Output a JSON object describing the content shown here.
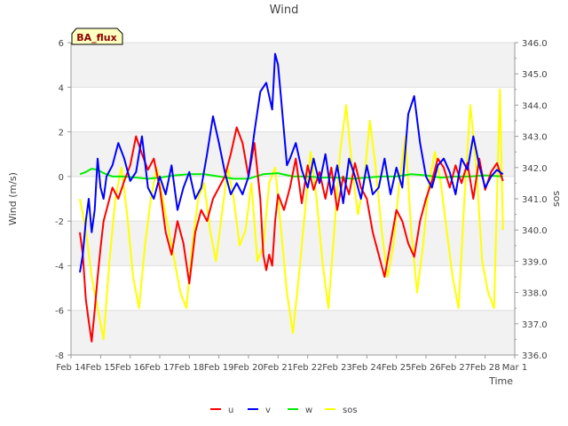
{
  "chart_data": {
    "type": "line",
    "title": "Wind",
    "xlabel": "Time",
    "ylabel": "Wind (m/s)",
    "y2label": "sos",
    "site_badge": "BA_flux",
    "x_ticks": [
      "Feb 14",
      "Feb 15",
      "Feb 16",
      "Feb 17",
      "Feb 18",
      "Feb 19",
      "Feb 20",
      "Feb 21",
      "Feb 22",
      "Feb 23",
      "Feb 24",
      "Feb 25",
      "Feb 26",
      "Feb 27",
      "Feb 28",
      "Mar 1"
    ],
    "xlim_days": [
      0,
      15
    ],
    "ylim": [
      -8,
      6
    ],
    "y_ticks": [
      "-8",
      "-6",
      "-4",
      "-2",
      "0",
      "2",
      "4",
      "6"
    ],
    "y2lim": [
      336.0,
      346.0
    ],
    "y2_ticks": [
      "336.0",
      "337.0",
      "338.0",
      "339.0",
      "340.0",
      "341.0",
      "342.0",
      "343.0",
      "344.0",
      "345.0",
      "346.0"
    ],
    "legend": [
      "u",
      "v",
      "w",
      "sos"
    ],
    "colors": {
      "u": "#ff0000",
      "v": "#0000ff",
      "w": "#00ee00",
      "sos": "#ffff00"
    },
    "series": [
      {
        "name": "u",
        "axis": "left",
        "x": [
          0.3,
          0.4,
          0.5,
          0.6,
          0.7,
          0.8,
          0.9,
          1.0,
          1.1,
          1.2,
          1.4,
          1.6,
          1.8,
          2.0,
          2.2,
          2.4,
          2.6,
          2.8,
          3.0,
          3.2,
          3.4,
          3.6,
          3.8,
          4.0,
          4.2,
          4.4,
          4.6,
          4.8,
          5.0,
          5.2,
          5.4,
          5.6,
          5.8,
          6.0,
          6.2,
          6.4,
          6.5,
          6.6,
          6.7,
          6.8,
          6.9,
          7.0,
          7.2,
          7.4,
          7.6,
          7.8,
          8.0,
          8.2,
          8.4,
          8.6,
          8.8,
          9.0,
          9.2,
          9.4,
          9.6,
          9.8,
          10.0,
          10.2,
          10.4,
          10.6,
          10.8,
          11.0,
          11.2,
          11.4,
          11.6,
          11.8,
          12.0,
          12.2,
          12.4,
          12.6,
          12.8,
          13.0,
          13.2,
          13.4,
          13.6,
          13.8,
          14.0,
          14.2,
          14.4,
          14.6
        ],
        "values": [
          -2.5,
          -3.5,
          -5.5,
          -6.5,
          -7.4,
          -6.0,
          -4.5,
          -3.2,
          -2.0,
          -1.5,
          -0.5,
          -1.0,
          -0.2,
          0.5,
          1.8,
          1.0,
          0.3,
          0.8,
          -0.5,
          -2.5,
          -3.5,
          -2.0,
          -3.0,
          -4.8,
          -2.5,
          -1.5,
          -2.0,
          -1.0,
          -0.5,
          0.0,
          1.0,
          2.2,
          1.5,
          0.0,
          1.5,
          -1.0,
          -3.5,
          -4.2,
          -3.5,
          -4.0,
          -2.0,
          -0.8,
          -1.5,
          -0.5,
          0.8,
          -1.2,
          0.5,
          -0.6,
          0.2,
          -1.0,
          0.4,
          -1.5,
          0.0,
          -0.8,
          0.6,
          -0.5,
          -1.0,
          -2.5,
          -3.5,
          -4.5,
          -3.0,
          -1.5,
          -2.0,
          -3.0,
          -3.6,
          -2.0,
          -1.0,
          -0.2,
          0.8,
          0.4,
          -0.5,
          0.5,
          -0.3,
          0.6,
          -1.0,
          0.8,
          -0.6,
          0.2,
          0.6,
          -0.2
        ]
      },
      {
        "name": "v",
        "axis": "left",
        "x": [
          0.3,
          0.4,
          0.5,
          0.6,
          0.7,
          0.8,
          0.9,
          1.0,
          1.1,
          1.2,
          1.4,
          1.6,
          1.8,
          2.0,
          2.2,
          2.4,
          2.6,
          2.8,
          3.0,
          3.2,
          3.4,
          3.6,
          3.8,
          4.0,
          4.2,
          4.4,
          4.6,
          4.8,
          5.0,
          5.2,
          5.4,
          5.6,
          5.8,
          6.0,
          6.2,
          6.4,
          6.6,
          6.8,
          6.9,
          7.0,
          7.1,
          7.2,
          7.3,
          7.4,
          7.6,
          7.8,
          8.0,
          8.2,
          8.4,
          8.6,
          8.8,
          9.0,
          9.2,
          9.4,
          9.6,
          9.8,
          10.0,
          10.2,
          10.4,
          10.6,
          10.8,
          11.0,
          11.2,
          11.4,
          11.6,
          11.8,
          12.0,
          12.2,
          12.4,
          12.6,
          12.8,
          13.0,
          13.2,
          13.4,
          13.6,
          13.8,
          14.0,
          14.2,
          14.4,
          14.6
        ],
        "values": [
          -4.3,
          -3.5,
          -2.0,
          -1.0,
          -2.5,
          -1.5,
          0.8,
          -0.5,
          -1.0,
          0.0,
          0.5,
          1.5,
          0.8,
          -0.2,
          0.2,
          1.8,
          -0.5,
          -1.0,
          0.0,
          -0.8,
          0.5,
          -1.5,
          -0.5,
          0.2,
          -1.0,
          -0.5,
          1.0,
          2.7,
          1.5,
          0.2,
          -0.8,
          -0.3,
          -0.8,
          0.0,
          2.0,
          3.8,
          4.2,
          3.0,
          5.5,
          5.0,
          3.5,
          2.0,
          0.5,
          0.8,
          1.5,
          0.3,
          -0.5,
          0.8,
          -0.3,
          1.0,
          -0.8,
          0.5,
          -1.2,
          0.8,
          0.0,
          -1.0,
          0.5,
          -0.8,
          -0.5,
          0.8,
          -0.8,
          0.4,
          -0.5,
          2.8,
          3.6,
          1.5,
          0.0,
          -0.5,
          0.5,
          0.8,
          0.2,
          -0.8,
          0.8,
          0.3,
          1.8,
          0.5,
          -0.5,
          0.0,
          0.3,
          0.1
        ]
      },
      {
        "name": "w",
        "axis": "left",
        "x": [
          0.3,
          0.5,
          0.7,
          0.9,
          1.1,
          1.4,
          1.8,
          2.2,
          2.6,
          3.0,
          3.5,
          4.0,
          4.5,
          5.0,
          5.5,
          6.0,
          6.5,
          7.0,
          7.5,
          8.0,
          8.5,
          9.0,
          9.5,
          10.0,
          10.5,
          11.0,
          11.5,
          12.0,
          12.5,
          13.0,
          13.5,
          14.0,
          14.6
        ],
        "values": [
          0.1,
          0.2,
          0.35,
          0.3,
          0.15,
          0.0,
          0.0,
          -0.05,
          -0.1,
          -0.05,
          0.05,
          0.1,
          0.1,
          0.0,
          -0.1,
          -0.1,
          0.1,
          0.15,
          0.0,
          0.0,
          -0.05,
          -0.05,
          -0.1,
          -0.05,
          0.0,
          0.0,
          0.1,
          0.05,
          -0.05,
          0.0,
          0.0,
          0.05,
          0.0
        ]
      },
      {
        "name": "sos",
        "axis": "right",
        "x": [
          0.3,
          0.5,
          0.7,
          0.9,
          1.1,
          1.3,
          1.5,
          1.7,
          1.9,
          2.1,
          2.3,
          2.5,
          2.7,
          2.9,
          3.1,
          3.3,
          3.5,
          3.7,
          3.9,
          4.1,
          4.3,
          4.5,
          4.7,
          4.9,
          5.1,
          5.3,
          5.5,
          5.7,
          5.9,
          6.1,
          6.3,
          6.5,
          6.7,
          6.9,
          7.1,
          7.3,
          7.5,
          7.7,
          7.9,
          8.1,
          8.3,
          8.5,
          8.7,
          8.9,
          9.1,
          9.3,
          9.5,
          9.7,
          9.9,
          10.1,
          10.3,
          10.5,
          10.7,
          10.9,
          11.1,
          11.3,
          11.5,
          11.7,
          11.9,
          12.1,
          12.3,
          12.5,
          12.7,
          12.9,
          13.1,
          13.3,
          13.5,
          13.7,
          13.9,
          14.1,
          14.3,
          14.5,
          14.6
        ],
        "values": [
          341.0,
          340.0,
          338.5,
          337.5,
          336.5,
          339.0,
          341.0,
          342.0,
          340.5,
          338.5,
          337.5,
          339.5,
          341.0,
          342.0,
          341.0,
          340.0,
          339.0,
          338.0,
          337.5,
          339.5,
          341.0,
          341.5,
          340.0,
          339.0,
          340.5,
          342.0,
          341.0,
          339.5,
          340.0,
          341.5,
          339.0,
          339.5,
          341.5,
          342.0,
          340.0,
          338.0,
          336.7,
          338.5,
          340.5,
          342.5,
          341.0,
          339.0,
          337.5,
          340.0,
          342.5,
          344.0,
          342.0,
          340.5,
          341.5,
          343.5,
          342.0,
          340.0,
          338.5,
          339.5,
          341.5,
          343.0,
          340.0,
          338.0,
          339.5,
          341.5,
          342.5,
          341.5,
          340.0,
          338.5,
          337.5,
          341.0,
          344.0,
          342.0,
          339.0,
          338.0,
          337.5,
          344.5,
          340.0
        ]
      }
    ]
  }
}
